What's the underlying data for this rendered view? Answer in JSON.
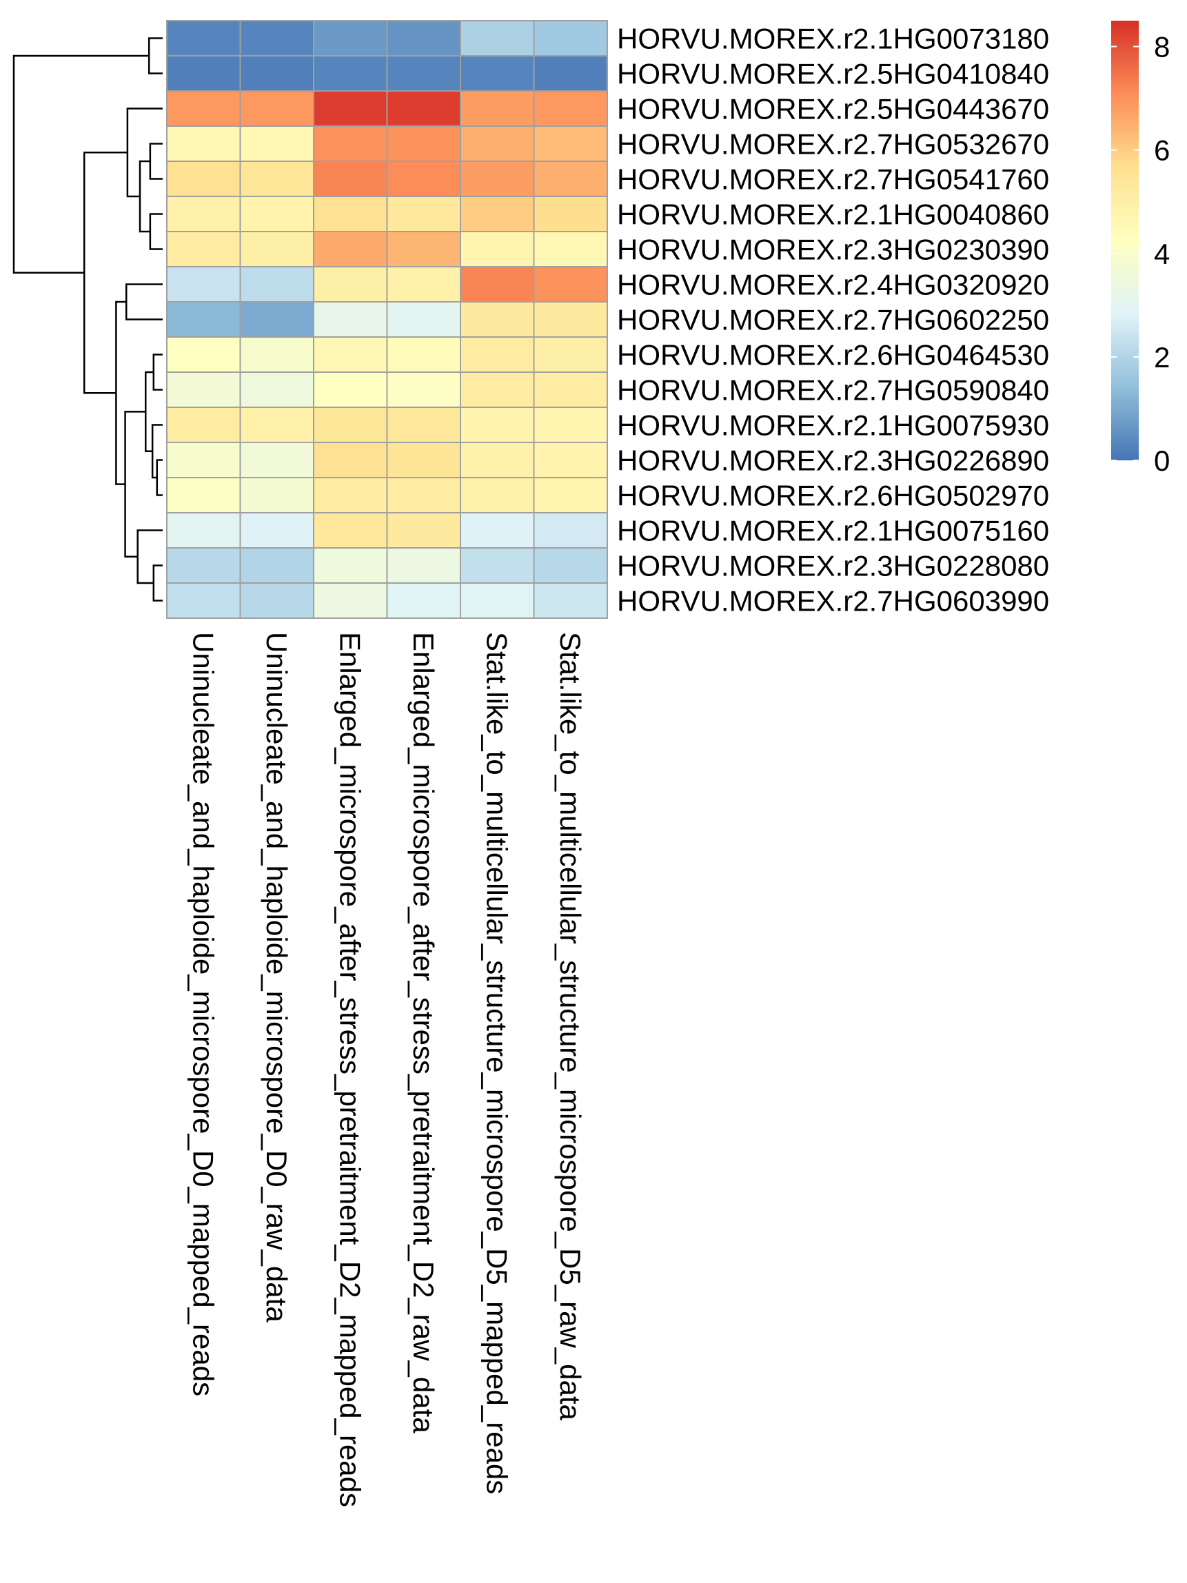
{
  "chart_data": {
    "type": "heatmap",
    "rows": [
      "HORVU.MOREX.r2.1HG0073180",
      "HORVU.MOREX.r2.5HG0410840",
      "HORVU.MOREX.r2.5HG0443670",
      "HORVU.MOREX.r2.7HG0532670",
      "HORVU.MOREX.r2.7HG0541760",
      "HORVU.MOREX.r2.1HG0040860",
      "HORVU.MOREX.r2.3HG0230390",
      "HORVU.MOREX.r2.4HG0320920",
      "HORVU.MOREX.r2.7HG0602250",
      "HORVU.MOREX.r2.6HG0464530",
      "HORVU.MOREX.r2.7HG0590840",
      "HORVU.MOREX.r2.1HG0075930",
      "HORVU.MOREX.r2.3HG0226890",
      "HORVU.MOREX.r2.6HG0502970",
      "HORVU.MOREX.r2.1HG0075160",
      "HORVU.MOREX.r2.3HG0228080",
      "HORVU.MOREX.r2.7HG0603990"
    ],
    "columns": [
      "Uninucleate_and_haploide_microspore_D0_mapped_reads",
      "Uninucleate_and_haploide_microspore_D0_raw_data",
      "Enlarged_microspore_after_stress_pretraitment_D2_mapped_reads",
      "Enlarged_microspore_after_stress_pretraitment_D2_raw_data",
      "Stat.like_to_multicellular_structure_microspore_D5_mapped_reads",
      "Stat.like_to_multicellular_structure_microspore_D5_raw_data"
    ],
    "values": [
      [
        0.3,
        0.3,
        0.7,
        0.6,
        1.9,
        1.7
      ],
      [
        0.2,
        0.2,
        0.3,
        0.3,
        0.3,
        0.2
      ],
      [
        6.9,
        6.9,
        8.3,
        8.3,
        6.8,
        6.9
      ],
      [
        4.6,
        4.6,
        7.0,
        7.0,
        6.5,
        6.3
      ],
      [
        5.6,
        5.4,
        7.2,
        7.1,
        6.8,
        6.5
      ],
      [
        4.9,
        4.8,
        5.6,
        5.3,
        6.0,
        5.7
      ],
      [
        5.1,
        5.0,
        6.6,
        6.4,
        4.7,
        4.6
      ],
      [
        2.4,
        2.2,
        5.0,
        4.9,
        7.2,
        7.0
      ],
      [
        1.3,
        1.0,
        3.2,
        3.0,
        5.2,
        5.2
      ],
      [
        4.2,
        3.9,
        4.6,
        4.4,
        5.1,
        5.0
      ],
      [
        3.7,
        3.5,
        4.2,
        4.1,
        5.1,
        5.1
      ],
      [
        5.1,
        4.9,
        5.4,
        5.3,
        4.8,
        4.7
      ],
      [
        3.9,
        3.6,
        5.6,
        5.5,
        4.9,
        4.8
      ],
      [
        4.1,
        3.8,
        5.1,
        5.1,
        4.9,
        4.7
      ],
      [
        3.0,
        2.8,
        5.3,
        5.2,
        2.8,
        2.6
      ],
      [
        2.1,
        2.0,
        3.5,
        3.4,
        2.3,
        2.1
      ],
      [
        2.3,
        2.1,
        3.4,
        2.9,
        2.9,
        2.5
      ]
    ],
    "scale": {
      "min": 0,
      "max": 8.5,
      "ticks": [
        0,
        2,
        4,
        6,
        8
      ],
      "colors": [
        "#4575B4",
        "#91BFDB",
        "#E0F3F8",
        "#FFFFBF",
        "#FEE090",
        "#FC8D59",
        "#D73027"
      ]
    },
    "row_dendrogram": {
      "merges": [
        [
          -1,
          -2,
          1.2
        ],
        [
          -6,
          -7,
          1.1
        ],
        [
          -4,
          -5,
          1.1
        ],
        [
          3,
          2,
          2.0
        ],
        [
          -3,
          4,
          3.1
        ],
        [
          -8,
          -9,
          3.2
        ],
        [
          -10,
          -11,
          0.8
        ],
        [
          -13,
          -14,
          0.5
        ],
        [
          -12,
          8,
          0.9
        ],
        [
          7,
          9,
          1.5
        ],
        [
          -16,
          -17,
          0.8
        ],
        [
          -15,
          11,
          2.2
        ],
        [
          10,
          12,
          3.3
        ],
        [
          6,
          13,
          4.1
        ],
        [
          5,
          14,
          6.9
        ],
        [
          1,
          15,
          13.1
        ]
      ]
    },
    "legend_position": "right"
  }
}
